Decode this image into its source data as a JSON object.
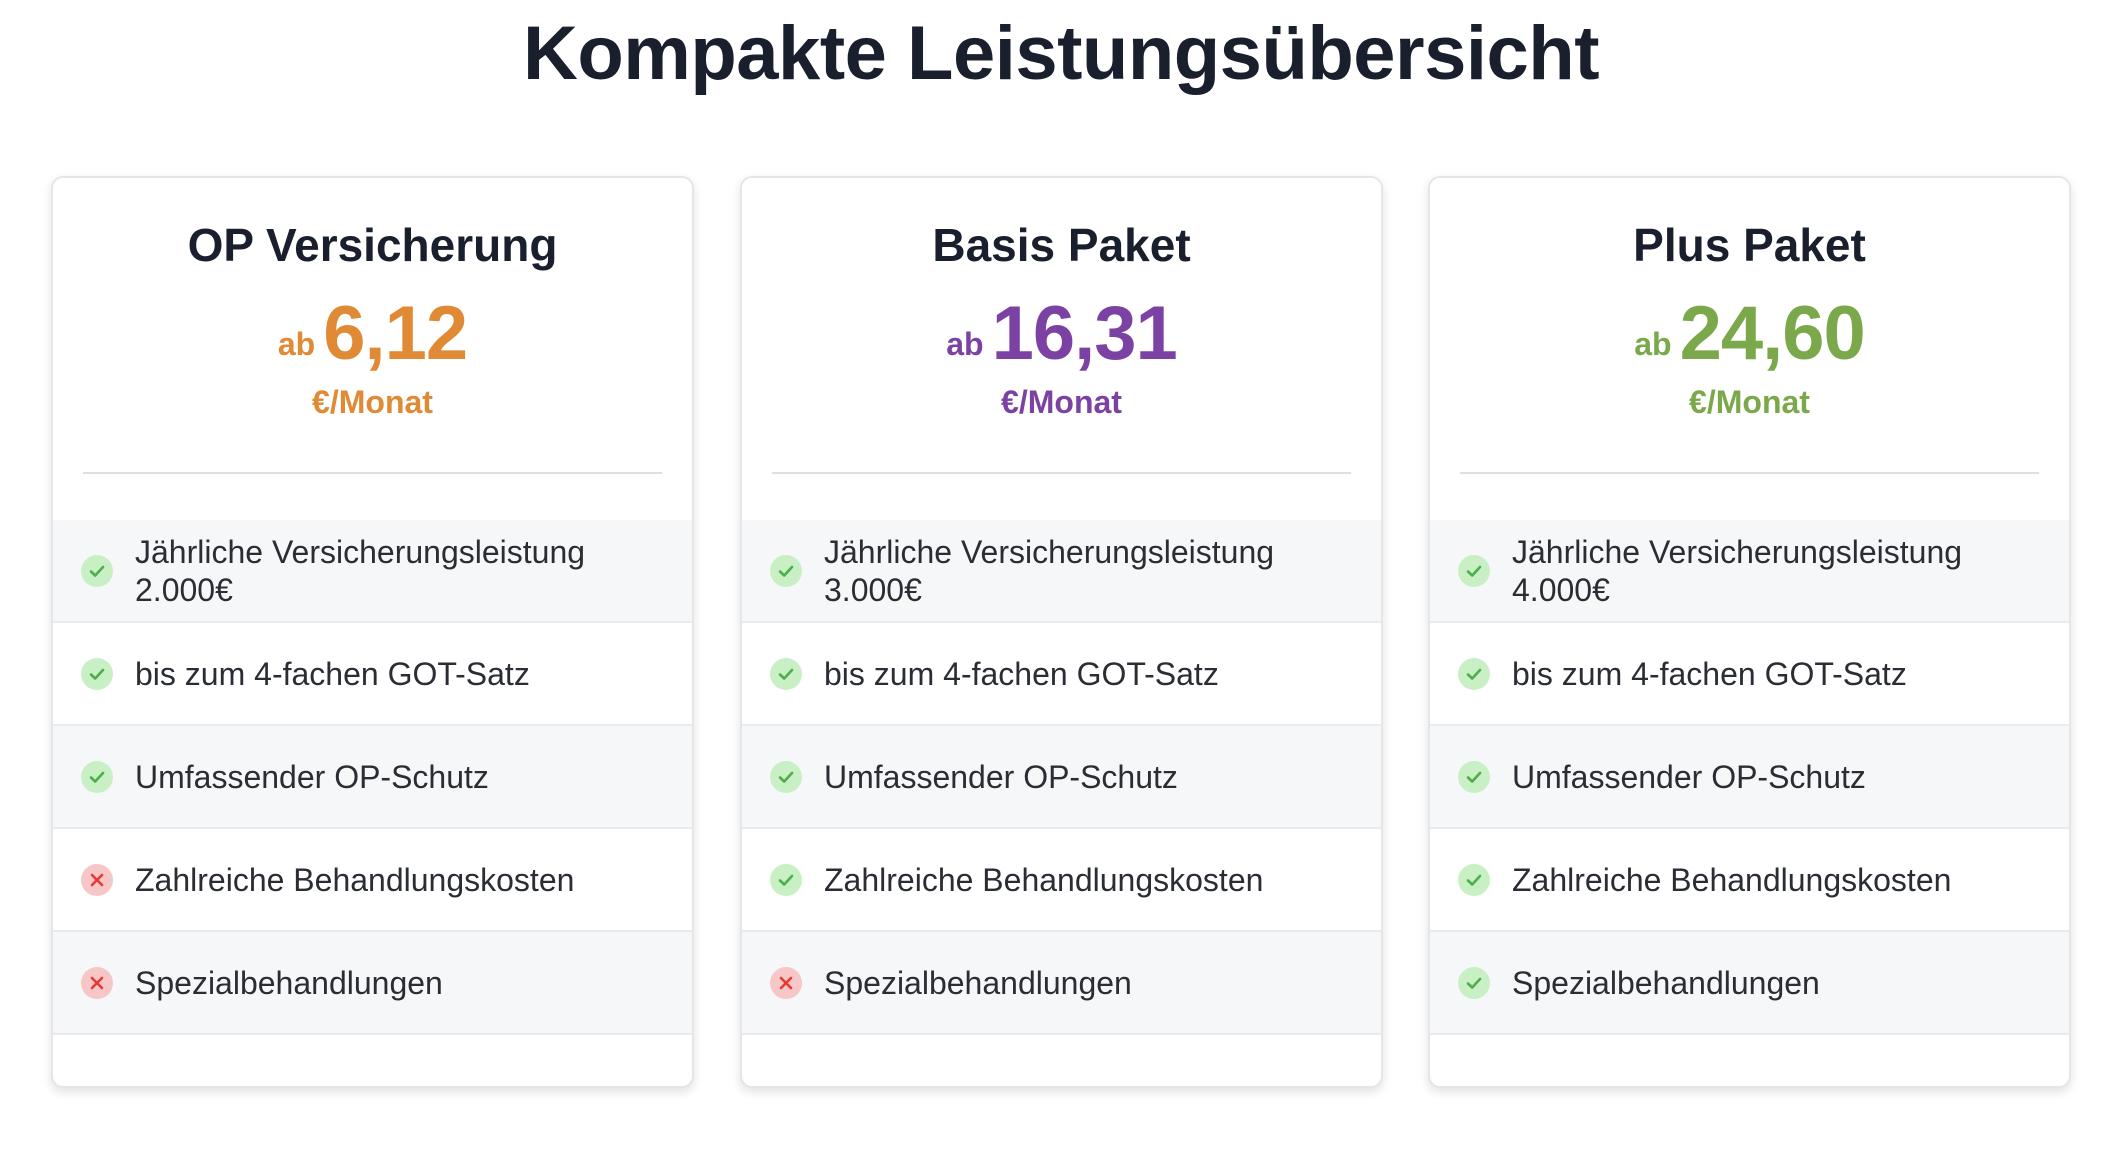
{
  "page": {
    "title": "Kompakte Leistungsübersicht"
  },
  "colors": {
    "orange": "#e08a35",
    "purple": "#7c42a3",
    "green": "#7ba84a",
    "check": "#4cae4c",
    "cross": "#e53935"
  },
  "plans": [
    {
      "name": "OP Versicherung",
      "price_prefix": "ab",
      "price": "6,12",
      "unit": "€/Monat",
      "accent": "orange",
      "features": [
        {
          "label_line1": "Jährliche Versicherungsleistung",
          "label_line2": "2.000€",
          "included": true,
          "icon": "check-icon"
        },
        {
          "label_line1": "bis zum 4-fachen GOT-Satz",
          "included": true,
          "icon": "check-icon"
        },
        {
          "label_line1": "Umfassender OP-Schutz",
          "included": true,
          "icon": "check-icon"
        },
        {
          "label_line1": "Zahlreiche Behandlungskosten",
          "included": false,
          "icon": "cross-icon"
        },
        {
          "label_line1": "Spezialbehandlungen",
          "included": false,
          "icon": "cross-icon"
        }
      ]
    },
    {
      "name": "Basis Paket",
      "price_prefix": "ab",
      "price": "16,31",
      "unit": "€/Monat",
      "accent": "purple",
      "features": [
        {
          "label_line1": "Jährliche Versicherungsleistung",
          "label_line2": "3.000€",
          "included": true,
          "icon": "check-icon"
        },
        {
          "label_line1": "bis zum 4-fachen GOT-Satz",
          "included": true,
          "icon": "check-icon"
        },
        {
          "label_line1": "Umfassender OP-Schutz",
          "included": true,
          "icon": "check-icon"
        },
        {
          "label_line1": "Zahlreiche Behandlungskosten",
          "included": true,
          "icon": "check-icon"
        },
        {
          "label_line1": "Spezialbehandlungen",
          "included": false,
          "icon": "cross-icon"
        }
      ]
    },
    {
      "name": "Plus Paket",
      "price_prefix": "ab",
      "price": "24,60",
      "unit": "€/Monat",
      "accent": "green",
      "features": [
        {
          "label_line1": "Jährliche Versicherungsleistung",
          "label_line2": "4.000€",
          "included": true,
          "icon": "check-icon"
        },
        {
          "label_line1": "bis zum 4-fachen GOT-Satz",
          "included": true,
          "icon": "check-icon"
        },
        {
          "label_line1": "Umfassender OP-Schutz",
          "included": true,
          "icon": "check-icon"
        },
        {
          "label_line1": "Zahlreiche Behandlungskosten",
          "included": true,
          "icon": "check-icon"
        },
        {
          "label_line1": "Spezialbehandlungen",
          "included": true,
          "icon": "check-icon"
        }
      ]
    }
  ]
}
